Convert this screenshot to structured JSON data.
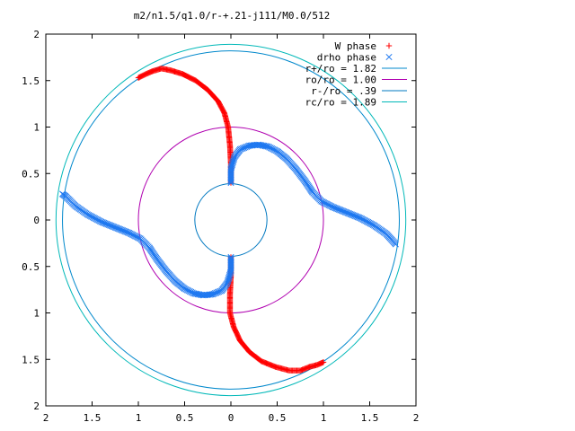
{
  "chart_data": {
    "type": "scatter",
    "title": "m2/n1.5/q1.0/r-+.21-j111/M0.0/512",
    "xlim": [
      -2,
      2
    ],
    "ylim": [
      -2,
      2
    ],
    "x_ticks": [
      {
        "value": -2,
        "label": "2"
      },
      {
        "value": -1.5,
        "label": "1.5"
      },
      {
        "value": -1,
        "label": "1"
      },
      {
        "value": -0.5,
        "label": "0.5"
      },
      {
        "value": 0,
        "label": "0"
      },
      {
        "value": 0.5,
        "label": "0.5"
      },
      {
        "value": 1,
        "label": "1"
      },
      {
        "value": 1.5,
        "label": "1.5"
      },
      {
        "value": 2,
        "label": "2"
      }
    ],
    "y_ticks": [
      {
        "value": 2,
        "label": "2"
      },
      {
        "value": 1.5,
        "label": "1.5"
      },
      {
        "value": 1,
        "label": "1"
      },
      {
        "value": 0.5,
        "label": "0.5"
      },
      {
        "value": 0,
        "label": "0"
      },
      {
        "value": -0.5,
        "label": "0.5"
      },
      {
        "value": -1,
        "label": "1"
      },
      {
        "value": -1.5,
        "label": "1.5"
      },
      {
        "value": -2,
        "label": "2"
      }
    ],
    "grid": false,
    "legend_position": "top-right",
    "series": [
      {
        "name": "W phase",
        "marker": "plus",
        "color": "#ff0000",
        "branches": [
          [
            [
              0.0,
              0.4
            ],
            [
              0.0,
              0.6
            ],
            [
              -0.01,
              0.8
            ],
            [
              -0.03,
              1.0
            ],
            [
              -0.07,
              1.15
            ],
            [
              -0.14,
              1.28
            ],
            [
              -0.25,
              1.4
            ],
            [
              -0.38,
              1.5
            ],
            [
              -0.52,
              1.57
            ],
            [
              -0.65,
              1.61
            ],
            [
              -0.75,
              1.63
            ],
            [
              -0.85,
              1.6
            ],
            [
              -0.92,
              1.57
            ],
            [
              -1.0,
              1.53
            ]
          ],
          [
            [
              0.0,
              -0.4
            ],
            [
              0.0,
              -0.6
            ],
            [
              -0.01,
              -0.8
            ],
            [
              -0.01,
              -1.0
            ],
            [
              0.03,
              -1.15
            ],
            [
              0.1,
              -1.3
            ],
            [
              0.2,
              -1.42
            ],
            [
              0.33,
              -1.52
            ],
            [
              0.48,
              -1.58
            ],
            [
              0.63,
              -1.62
            ],
            [
              0.75,
              -1.62
            ],
            [
              0.85,
              -1.58
            ],
            [
              0.93,
              -1.56
            ],
            [
              1.0,
              -1.53
            ]
          ]
        ]
      },
      {
        "name": "drho phase",
        "marker": "cross",
        "color": "#1e78f0",
        "branches": [
          [
            [
              0.0,
              0.4
            ],
            [
              0.0,
              0.55
            ],
            [
              0.04,
              0.68
            ],
            [
              0.1,
              0.76
            ],
            [
              0.2,
              0.8
            ],
            [
              0.3,
              0.81
            ],
            [
              0.4,
              0.79
            ],
            [
              0.5,
              0.74
            ],
            [
              0.6,
              0.66
            ],
            [
              0.7,
              0.55
            ],
            [
              0.8,
              0.42
            ],
            [
              0.88,
              0.3
            ],
            [
              0.98,
              0.2
            ],
            [
              1.1,
              0.14
            ],
            [
              1.25,
              0.08
            ],
            [
              1.4,
              0.02
            ],
            [
              1.55,
              -0.06
            ],
            [
              1.68,
              -0.15
            ],
            [
              1.78,
              -0.26
            ]
          ],
          [
            [
              0.0,
              -0.4
            ],
            [
              0.0,
              -0.55
            ],
            [
              -0.04,
              -0.68
            ],
            [
              -0.1,
              -0.76
            ],
            [
              -0.2,
              -0.8
            ],
            [
              -0.3,
              -0.81
            ],
            [
              -0.4,
              -0.79
            ],
            [
              -0.5,
              -0.74
            ],
            [
              -0.6,
              -0.66
            ],
            [
              -0.7,
              -0.55
            ],
            [
              -0.8,
              -0.42
            ],
            [
              -0.88,
              -0.3
            ],
            [
              -0.98,
              -0.2
            ],
            [
              -1.1,
              -0.14
            ],
            [
              -1.25,
              -0.08
            ],
            [
              -1.4,
              -0.02
            ],
            [
              -1.55,
              0.06
            ],
            [
              -1.68,
              0.15
            ],
            [
              -1.78,
              0.25
            ],
            [
              -1.82,
              0.28
            ]
          ]
        ]
      },
      {
        "name": "r+/ro = 1.82",
        "type": "circle",
        "radius": 1.82,
        "color": "#0088cc"
      },
      {
        "name": "ro/ro = 1.00",
        "type": "circle",
        "radius": 1.0,
        "color": "#b000b0"
      },
      {
        "name": "r-/ro = .39",
        "type": "circle",
        "radius": 0.39,
        "color": "#0078c0"
      },
      {
        "name": "rc/ro = 1.89",
        "type": "circle",
        "radius": 1.89,
        "color": "#00b8b8"
      }
    ]
  }
}
